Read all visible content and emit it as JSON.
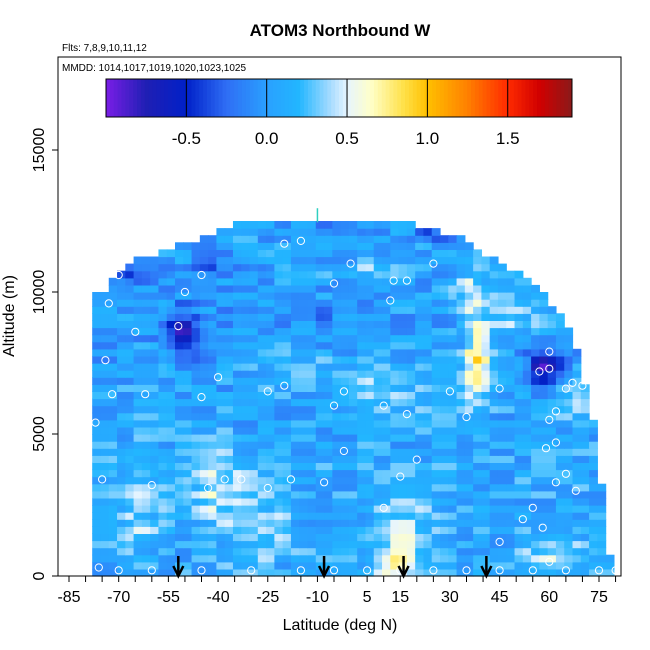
{
  "chart_data": {
    "type": "heatmap",
    "title": "ATOM3 Northbound W",
    "subtitle_flights": "Flts: 7,8,9,10,11,12",
    "subtitle_dates": "MMDD: 1014,1017,1019,1020,1023,1025",
    "xlabel": "Latitude (deg N)",
    "ylabel": "Altitude (m)",
    "xlim": [
      -85,
      85
    ],
    "ylim": [
      0,
      17500
    ],
    "x_ticks": [
      -85,
      -70,
      -55,
      -40,
      -25,
      -10,
      5,
      15,
      30,
      45,
      60,
      75
    ],
    "x_ticks_minor_step": 5,
    "y_ticks": [
      0,
      5000,
      10000,
      15000
    ],
    "colorbar": {
      "range": [
        -1.0,
        1.9
      ],
      "ticks": [
        -0.5,
        0.0,
        0.5,
        1.0,
        1.5
      ],
      "tick_labels": [
        "-0.5",
        "0.0",
        "0.5",
        "1.0",
        "1.5"
      ],
      "colors": [
        {
          "v": -1.0,
          "c": "#7a1ee6"
        },
        {
          "v": -0.75,
          "c": "#1f1fb4"
        },
        {
          "v": -0.5,
          "c": "#0020c8"
        },
        {
          "v": -0.25,
          "c": "#2f6ef5"
        },
        {
          "v": 0.0,
          "c": "#2aa0ff"
        },
        {
          "v": 0.2,
          "c": "#22b6ff"
        },
        {
          "v": 0.4,
          "c": "#a8dcff"
        },
        {
          "v": 0.5,
          "c": "#e6f4ff"
        },
        {
          "v": 0.65,
          "c": "#ffffc8"
        },
        {
          "v": 0.85,
          "c": "#ffe14a"
        },
        {
          "v": 1.0,
          "c": "#ffc000"
        },
        {
          "v": 1.25,
          "c": "#ff8000"
        },
        {
          "v": 1.5,
          "c": "#ff2a00"
        },
        {
          "v": 1.7,
          "c": "#d00000"
        },
        {
          "v": 1.9,
          "c": "#8b1a1a"
        }
      ]
    },
    "ceiling_profile": [
      {
        "lat": -75,
        "alt": 9800
      },
      {
        "lat": -73,
        "alt": 10200
      },
      {
        "lat": -70,
        "alt": 10600
      },
      {
        "lat": -65,
        "alt": 11000
      },
      {
        "lat": -55,
        "alt": 11400
      },
      {
        "lat": -45,
        "alt": 11800
      },
      {
        "lat": -33,
        "alt": 12400
      },
      {
        "lat": 15,
        "alt": 12400
      },
      {
        "lat": 33,
        "alt": 11800
      },
      {
        "lat": 40,
        "alt": 11200
      },
      {
        "lat": 50,
        "alt": 10600
      },
      {
        "lat": 58,
        "alt": 9800
      },
      {
        "lat": 65,
        "alt": 9000
      },
      {
        "lat": 68,
        "alt": 8000
      },
      {
        "lat": 70,
        "alt": 7000
      },
      {
        "lat": 72,
        "alt": 6000
      },
      {
        "lat": 74,
        "alt": 5000
      },
      {
        "lat": 75,
        "alt": 4000
      },
      {
        "lat": 76,
        "alt": 3000
      },
      {
        "lat": 77,
        "alt": 2000
      },
      {
        "lat": 78,
        "alt": 1000
      },
      {
        "lat": 79,
        "alt": 0
      }
    ],
    "floor_left_lat": -77,
    "background_value": 0.1,
    "features": [
      {
        "lat": -52,
        "alt": 8500,
        "val": -0.6,
        "rx": 5,
        "ry": 900
      },
      {
        "lat": 57,
        "alt": 7200,
        "val": -0.7,
        "rx": 5,
        "ry": 600
      },
      {
        "lat": 37,
        "alt": 7500,
        "val": 0.85,
        "rx": 4,
        "ry": 1500
      },
      {
        "lat": 35,
        "alt": 9800,
        "val": 0.55,
        "rx": 5,
        "ry": 800
      },
      {
        "lat": -40,
        "alt": 10800,
        "val": -0.2,
        "rx": 12,
        "ry": 500
      },
      {
        "lat": -65,
        "alt": 10400,
        "val": -0.3,
        "rx": 8,
        "ry": 300
      },
      {
        "lat": -10,
        "alt": 12000,
        "val": -0.1,
        "rx": 15,
        "ry": 400
      },
      {
        "lat": 25,
        "alt": 11900,
        "val": -0.3,
        "rx": 8,
        "ry": 300
      },
      {
        "lat": -42,
        "alt": 3000,
        "val": 0.45,
        "rx": 7,
        "ry": 1200
      },
      {
        "lat": -65,
        "alt": 2500,
        "val": 0.4,
        "rx": 6,
        "ry": 1800
      },
      {
        "lat": -30,
        "alt": 1800,
        "val": 0.35,
        "rx": 10,
        "ry": 1500
      },
      {
        "lat": 15,
        "alt": 1500,
        "val": 0.4,
        "rx": 10,
        "ry": 1200
      },
      {
        "lat": 12,
        "alt": 300,
        "val": 0.6,
        "rx": 6,
        "ry": 400
      },
      {
        "lat": 60,
        "alt": 800,
        "val": 0.45,
        "rx": 8,
        "ry": 700
      },
      {
        "lat": 10,
        "alt": 6500,
        "val": 0.4,
        "rx": 12,
        "ry": 900
      },
      {
        "lat": -15,
        "alt": 7300,
        "val": 0.3,
        "rx": 15,
        "ry": 700
      },
      {
        "lat": 48,
        "alt": 9000,
        "val": 0.45,
        "rx": 8,
        "ry": 600
      },
      {
        "lat": 65,
        "alt": 6200,
        "val": 0.35,
        "rx": 6,
        "ry": 600
      },
      {
        "lat": -20,
        "alt": 9000,
        "val": -0.05,
        "rx": 20,
        "ry": 600
      },
      {
        "lat": 5,
        "alt": 10600,
        "val": 0.3,
        "rx": 10,
        "ry": 400
      }
    ],
    "sample_points": [
      [
        -77,
        5400
      ],
      [
        -75,
        3400
      ],
      [
        -72,
        6400
      ],
      [
        -74,
        7600
      ],
      [
        -73,
        9600
      ],
      [
        -70,
        10600
      ],
      [
        -65,
        8600
      ],
      [
        -62,
        6400
      ],
      [
        -60,
        3200
      ],
      [
        -52,
        8800
      ],
      [
        -50,
        10000
      ],
      [
        -45,
        10600
      ],
      [
        -40,
        7000
      ],
      [
        -45,
        6300
      ],
      [
        -43,
        3100
      ],
      [
        -38,
        3400
      ],
      [
        -33,
        3400
      ],
      [
        -25,
        6500
      ],
      [
        -20,
        6700
      ],
      [
        -25,
        3100
      ],
      [
        -18,
        3400
      ],
      [
        -20,
        11700
      ],
      [
        -15,
        11800
      ],
      [
        -5,
        10300
      ],
      [
        0,
        11000
      ],
      [
        -8,
        3300
      ],
      [
        -5,
        6000
      ],
      [
        -2,
        6500
      ],
      [
        -2,
        4400
      ],
      [
        10,
        6000
      ],
      [
        12,
        9700
      ],
      [
        13,
        10400
      ],
      [
        15,
        3500
      ],
      [
        10,
        2400
      ],
      [
        17,
        5700
      ],
      [
        20,
        4100
      ],
      [
        17,
        10400
      ],
      [
        25,
        11000
      ],
      [
        30,
        6500
      ],
      [
        35,
        5600
      ],
      [
        42,
        11500
      ],
      [
        45,
        6600
      ],
      [
        45,
        1200
      ],
      [
        52,
        2000
      ],
      [
        55,
        2400
      ],
      [
        58,
        1700
      ],
      [
        60,
        500
      ],
      [
        62,
        4700
      ],
      [
        62,
        3300
      ],
      [
        65,
        3600
      ],
      [
        68,
        3000
      ],
      [
        60,
        5500
      ],
      [
        65,
        6600
      ],
      [
        67,
        6800
      ],
      [
        70,
        6700
      ],
      [
        57,
        7200
      ],
      [
        60,
        7900
      ],
      [
        62,
        5800
      ],
      [
        59,
        4500
      ],
      [
        60,
        7300
      ],
      [
        -76,
        300
      ],
      [
        -70,
        200
      ],
      [
        -60,
        200
      ],
      [
        -45,
        200
      ],
      [
        -30,
        200
      ],
      [
        -15,
        200
      ],
      [
        -5,
        200
      ],
      [
        5,
        200
      ],
      [
        15,
        200
      ],
      [
        25,
        200
      ],
      [
        35,
        200
      ],
      [
        45,
        200
      ],
      [
        55,
        200
      ],
      [
        65,
        200
      ],
      [
        75,
        200
      ],
      [
        80,
        200
      ]
    ],
    "profile_top_marker_lat": -10,
    "flight_markers_lat": [
      -52,
      -8,
      16,
      41
    ]
  }
}
